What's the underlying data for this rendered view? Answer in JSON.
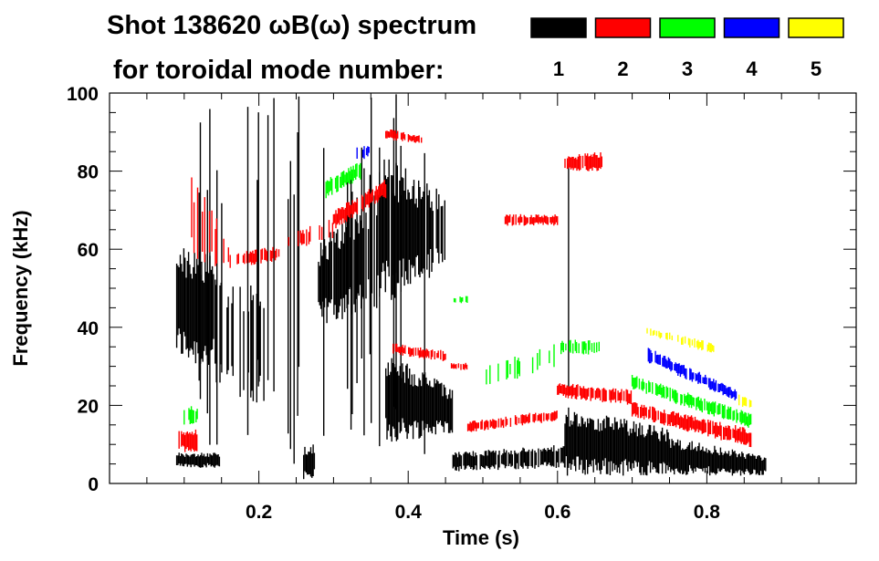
{
  "chart_data": {
    "type": "heatmap",
    "title": "Shot 138620 ωB(ω) spectrum",
    "subtitle": "for toroidal mode number:",
    "xlabel": "Time (s)",
    "ylabel": "Frequency (kHz)",
    "xlim": [
      0,
      1.0
    ],
    "ylim": [
      0,
      100
    ],
    "xticks": [
      "0.2",
      "0.4",
      "0.6",
      "0.8"
    ],
    "xtick_values": [
      0.2,
      0.4,
      0.6,
      0.8
    ],
    "yticks": [
      "0",
      "20",
      "40",
      "60",
      "80",
      "100"
    ],
    "ytick_values": [
      0,
      20,
      40,
      60,
      80,
      100
    ],
    "legend": [
      {
        "label": "1",
        "color": "#000000"
      },
      {
        "label": "2",
        "color": "#ff0000"
      },
      {
        "label": "3",
        "color": "#00ff00"
      },
      {
        "label": "4",
        "color": "#0000ff"
      },
      {
        "label": "5",
        "color": "#ffff00"
      }
    ],
    "legend_placement": "top-right",
    "series": [
      {
        "name": "n=1",
        "color": "#000000",
        "bands": [
          {
            "t": [
              0.09,
              0.14
            ],
            "f0": [
              32,
              62
            ],
            "f1": [
              28,
              58
            ],
            "density": 1.0
          },
          {
            "t": [
              0.09,
              0.15
            ],
            "f0": [
              4,
              8
            ],
            "f1": [
              4,
              8
            ],
            "density": 0.9
          },
          {
            "t": [
              0.14,
              0.21
            ],
            "f0": [
              22,
              55
            ],
            "f1": [
              20,
              50
            ],
            "density": 0.5
          },
          {
            "t": [
              0.26,
              0.275
            ],
            "f0": [
              1,
              10
            ],
            "f1": [
              1,
              10
            ],
            "density": 0.9
          },
          {
            "t": [
              0.28,
              0.36
            ],
            "f0": [
              40,
              62
            ],
            "f1": [
              45,
              76
            ],
            "density": 0.8
          },
          {
            "t": [
              0.36,
              0.45
            ],
            "f0": [
              45,
              85
            ],
            "f1": [
              55,
              75
            ],
            "density": 0.9
          },
          {
            "t": [
              0.37,
              0.46
            ],
            "f0": [
              10,
              35
            ],
            "f1": [
              13,
              24
            ],
            "density": 0.95
          },
          {
            "t": [
              0.46,
              0.61
            ],
            "f0": [
              3,
              8
            ],
            "f1": [
              4,
              10
            ],
            "density": 0.8
          },
          {
            "t": [
              0.61,
              0.75
            ],
            "f0": [
              2,
              20
            ],
            "f1": [
              2,
              14
            ],
            "density": 1.0
          },
          {
            "t": [
              0.75,
              0.88
            ],
            "f0": [
              2,
              12
            ],
            "f1": [
              2,
              7
            ],
            "density": 1.0
          },
          {
            "t": [
              0.12,
              0.45
            ],
            "f0": [
              5,
              100
            ],
            "f1": [
              5,
              100
            ],
            "density": 0.12
          },
          {
            "t": [
              0.61,
              0.66
            ],
            "f0": [
              20,
              100
            ],
            "f1": [
              20,
              100
            ],
            "density": 0.06
          }
        ]
      },
      {
        "name": "n=2",
        "color": "#ff0000",
        "bands": [
          {
            "t": [
              0.09,
              0.12
            ],
            "f0": [
              8,
              14
            ],
            "f1": [
              8,
              14
            ],
            "density": 0.8
          },
          {
            "t": [
              0.11,
              0.16
            ],
            "f0": [
              56,
              80
            ],
            "f1": [
              55,
              62
            ],
            "density": 0.3
          },
          {
            "t": [
              0.16,
              0.23
            ],
            "f0": [
              55,
              59
            ],
            "f1": [
              57,
              61
            ],
            "density": 0.5
          },
          {
            "t": [
              0.24,
              0.3
            ],
            "f0": [
              60,
              64
            ],
            "f1": [
              62,
              68
            ],
            "density": 0.4
          },
          {
            "t": [
              0.3,
              0.37
            ],
            "f0": [
              65,
              70
            ],
            "f1": [
              73,
              78
            ],
            "density": 0.9
          },
          {
            "t": [
              0.37,
              0.42
            ],
            "f0": [
              88,
              91
            ],
            "f1": [
              87,
              89
            ],
            "density": 0.8
          },
          {
            "t": [
              0.38,
              0.45
            ],
            "f0": [
              33,
              36
            ],
            "f1": [
              31,
              34
            ],
            "density": 0.8
          },
          {
            "t": [
              0.45,
              0.48
            ],
            "f0": [
              29,
              31
            ],
            "f1": [
              29,
              31
            ],
            "density": 0.6
          },
          {
            "t": [
              0.48,
              0.6
            ],
            "f0": [
              13,
              16
            ],
            "f1": [
              16,
              19
            ],
            "density": 0.8
          },
          {
            "t": [
              0.53,
              0.6
            ],
            "f0": [
              66,
              69
            ],
            "f1": [
              66,
              69
            ],
            "density": 0.9
          },
          {
            "t": [
              0.61,
              0.66
            ],
            "f0": [
              80,
              84
            ],
            "f1": [
              80,
              85
            ],
            "density": 0.9
          },
          {
            "t": [
              0.6,
              0.7
            ],
            "f0": [
              22,
              26
            ],
            "f1": [
              20,
              24
            ],
            "density": 0.9
          },
          {
            "t": [
              0.7,
              0.86
            ],
            "f0": [
              17,
              21
            ],
            "f1": [
              9,
              14
            ],
            "density": 0.9
          }
        ]
      },
      {
        "name": "n=3",
        "color": "#00ff00",
        "bands": [
          {
            "t": [
              0.29,
              0.34
            ],
            "f0": [
              73,
              78
            ],
            "f1": [
              78,
              83
            ],
            "density": 0.8
          },
          {
            "t": [
              0.1,
              0.13
            ],
            "f0": [
              15,
              20
            ],
            "f1": [
              15,
              20
            ],
            "density": 0.4
          },
          {
            "t": [
              0.5,
              0.6
            ],
            "f0": [
              24,
              30
            ],
            "f1": [
              30,
              36
            ],
            "density": 0.25
          },
          {
            "t": [
              0.6,
              0.66
            ],
            "f0": [
              33,
              37
            ],
            "f1": [
              33,
              37
            ],
            "density": 0.6
          },
          {
            "t": [
              0.7,
              0.86
            ],
            "f0": [
              24,
              28
            ],
            "f1": [
              14,
              18
            ],
            "density": 0.7
          },
          {
            "t": [
              0.46,
              0.48
            ],
            "f0": [
              46,
              48
            ],
            "f1": [
              46,
              48
            ],
            "density": 0.5
          }
        ]
      },
      {
        "name": "n=4",
        "color": "#0000ff",
        "bands": [
          {
            "t": [
              0.33,
              0.35
            ],
            "f0": [
              82,
              86
            ],
            "f1": [
              84,
              87
            ],
            "density": 0.6
          },
          {
            "t": [
              0.72,
              0.84
            ],
            "f0": [
              31,
              35
            ],
            "f1": [
              21,
              24
            ],
            "density": 0.8
          }
        ]
      },
      {
        "name": "n=5",
        "color": "#ffff00",
        "bands": [
          {
            "t": [
              0.72,
              0.81
            ],
            "f0": [
              38,
              40
            ],
            "f1": [
              33,
              36
            ],
            "density": 0.6
          },
          {
            "t": [
              0.84,
              0.86
            ],
            "f0": [
              20,
              23
            ],
            "f1": [
              19,
              22
            ],
            "density": 0.5
          }
        ]
      }
    ]
  }
}
